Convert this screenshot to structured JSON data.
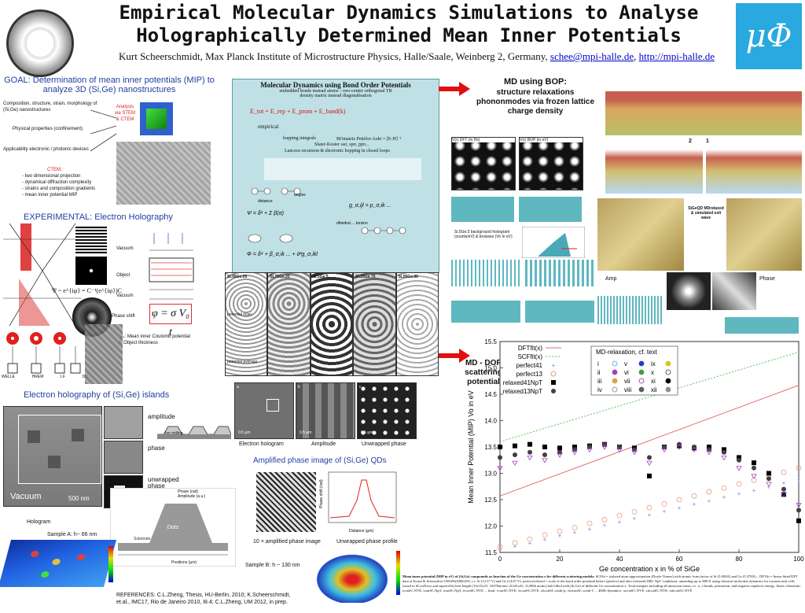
{
  "header": {
    "title_line1": "Empirical Molecular Dynamics Simulations to Analyse",
    "title_line2": "Holographically Determined Mean Inner Potentials",
    "authors": "Kurt Scheerschmidt, Max Planck Institute of Microstructure Physics, Halle/Saale, Weinberg 2, Germany,",
    "email": "schee@mpi-halle.de",
    "url": "http://mpi-halle.de",
    "logo_text": "μΦ"
  },
  "left": {
    "goal": "GOAL: Determination of mean inner potentials (MIP) to analyze 3D (Si,Ge) nanostructures",
    "goal_items": [
      "Composition, structure, strain, morphology of (Si,Ge) nanostructures",
      "Physical properties (confinement)",
      "Applicability electronic / photonic devices"
    ],
    "analysis": "Analysis via STEM & CTEM",
    "ctem_title": "CTEM:",
    "ctem_items": [
      "- two dimensional projection",
      "- dynamical diffraction complexity",
      "- strains and composition gradients",
      "- mean inner potential MIP"
    ],
    "experimental": "EXPERIMENTAL: Electron Holography",
    "vacuum": "Vacuum",
    "object": "Object",
    "vacuum2": "Vacuum",
    "phase_shift": "Phase shift",
    "formula_psi": "Ψ ~ e^{iφ} = C⁻¹(e^{iφ})C",
    "formula_phi": "φ = σ V₀ t",
    "v0_label": "V₀: Mean inner Coulomb potential",
    "t_label": "t: Object thickness",
    "boxes": [
      "WELLE",
      "HREM",
      "LF",
      "DC"
    ],
    "islands_title": "Electron holography of (Si,Ge) islands",
    "vacuum_label": "Vacuum",
    "scalebar": "500 nm",
    "amplitude": "amplitude",
    "ion_milling": "Ion milling",
    "phase": "phase",
    "unwrapped_phase": "unwrapped phase",
    "hologram": "Hologram",
    "sample_a": "Sample A: h~ 66 nm",
    "phase_legend": [
      "Phase (rad)",
      "Amplitude (a.u.)"
    ],
    "positions_label": "Positions (µm)",
    "substrate": "Substrate",
    "dots": "Dots",
    "references": "REFERENCES: C.L.Zheng, Thesis, HU-Berlin, 2010; K.Scheerschmidt, et.al., IMC17, Rio de Janeiro 2010, I8.4; C.L.Zheng, UM 2012, in prep."
  },
  "center": {
    "md_title": "Molecular Dynamics using Bond Order Potentials",
    "md_sub1": "embedded bonds instead atoms – two-center orthogonal TB",
    "md_sub2": "density matrix instead diagonalisation",
    "energy": "E_tot = E_rep + E_prom + E_band(k)",
    "empirical": "empirical",
    "hopping": "hopping integrals",
    "bonatrix": "BOmatrix Pettifor-Aoki = [E-H]⁻¹",
    "slater": "Slater-Koster ssσ, spσ, ppπ...",
    "lanczos": "Lanczos recursion & electronic hopping in closed loops",
    "distance": "distance",
    "angles": "angles",
    "dihedral": "dihedral ... torsion",
    "sim_labels": [
      "Si.95Ge.05",
      "Si.75Ge.25",
      "Si.5Ge.5",
      "Si.25Ge.75",
      "Si.05Ge.95"
    ],
    "potential_scan": "potential scan",
    "potential_average": "potential average",
    "holo_labels": [
      "a",
      "b",
      "c"
    ],
    "scale_05": "0.5 µm",
    "caption_holo": "Electron hologram",
    "caption_amp": "Amplitude",
    "caption_unwrap": "Unwrapped phase",
    "amp_phase_title": "Amplified phase image of (Si,Ge) QDs",
    "amp_caption": "10 × amplified phase image",
    "profile_caption": "Unwrapped phase profile",
    "profile_ylabel": "Phase shift (rad)",
    "profile_xlabel": "Distance (µm)",
    "sample_b": "Sample B: h ~ 130 nm"
  },
  "right": {
    "md_bop_title": "MD using BOP:",
    "md_bop_desc": "structure relaxations phononmodes via frozen lattice charge density",
    "v_dft": "V(r) DFT (in Hs)",
    "v_bop": "V(r) BOP (in eV)",
    "sige_label": "Si.5Ge.5 background histogram (counts/eV) & browses (Vo in eV)",
    "sigeqd": "SiGeQD MDrelaxed & simulated exit wave",
    "amp": "Amp",
    "phase": "Phase",
    "arrow_1": "1",
    "arrow_2": "2",
    "md_dop": "MD - DOP scattering potential",
    "caption_bold": "Mean inner potential (MIP in eV) of (Si,Ge) compounds as function of the Ge concentration x for different scattering models:",
    "caption_text": "SCFfit = isolated atom approximation (Doyle-Turner) with atomic form factor of Si (5.828Å) and Ge (5.378Å) – DFTfit = linear fitted DFT data of Kruse & Schowalter UM106(2006)105, i.e. Si (12.57 V) and Ge (14.67 V). perfect/relaxed = scale of the bond order potential before (perfect) and after (relaxed) MD; NpT conditions: annealing up to 800 K using classical molecular dynamics for vacuum unit cells (sized to SCxxNxxx and supercells) best length (15x15x15, 10470atoms/ 41x41x41, 312866 atoms) half filled with (Si,Ge) of different Ge concentration x. Total energies including all attraction terms, i.e. σ, π bonds, promotion, and negative repulsive energy. Static relaxation: iconSC.NVE, iconSC.NpT, iconSC.NpT, ivconSC.NVE ... final: vconSC.NVE, viconSC.NVE, viiconSC.weak-p, viiiconSC.weak-T ... 400K-dynamics: xiconSC.NVE, xiiconSC.NVE, xiiiconSC.NVE"
  },
  "chart_data": {
    "type": "scatter",
    "title": "",
    "xlabel": "Ge concentration x in % of  SiGe",
    "ylabel": "Mean Inner Potential (MIP) Vo in eV",
    "xlim": [
      0,
      100
    ],
    "ylim": [
      11.5,
      15.5
    ],
    "xticks": [
      0,
      20,
      40,
      60,
      80,
      100
    ],
    "yticks": [
      11.5,
      12,
      12.5,
      13,
      13.5,
      14,
      14.5,
      15,
      15.5
    ],
    "legend_left": [
      "DFTfit(x)",
      "SCFfit(x)",
      "perfect41",
      "perfect13",
      "relaxed41NpT",
      "relaxed13NpT"
    ],
    "legend_right_title": "MD-relaxation, cf. text",
    "legend_right": [
      "i",
      "ii",
      "iii",
      "iv",
      "v",
      "vi",
      "vii",
      "viii",
      "ix",
      "x",
      "xi",
      "xii"
    ],
    "series": [
      {
        "name": "DFTfit(x)",
        "x": [
          0,
          100
        ],
        "y": [
          12.57,
          14.67
        ],
        "color": "#e07070"
      },
      {
        "name": "SCFfit(x)",
        "x": [
          0,
          100
        ],
        "y": [
          13.6,
          15.3
        ],
        "color": "#60c060"
      },
      {
        "name": "perfect41",
        "x": [
          0,
          5,
          10,
          15,
          20,
          25,
          30,
          35,
          40,
          45,
          50,
          55,
          60,
          65,
          70,
          75,
          80,
          85,
          90,
          95,
          100
        ],
        "y": [
          11.55,
          11.62,
          11.68,
          11.75,
          11.82,
          11.88,
          11.95,
          12.02,
          12.08,
          12.15,
          12.22,
          12.28,
          12.35,
          12.42,
          12.48,
          12.55,
          12.62,
          12.68,
          12.75,
          12.82,
          12.88
        ],
        "color": "#8080e0"
      },
      {
        "name": "perfect13",
        "x": [
          0,
          5,
          10,
          15,
          20,
          25,
          30,
          35,
          40,
          45,
          50,
          55,
          60,
          65,
          70,
          75,
          80,
          85,
          90,
          95,
          100
        ],
        "y": [
          11.6,
          11.68,
          11.75,
          11.83,
          11.9,
          11.97,
          12.05,
          12.12,
          12.2,
          12.27,
          12.35,
          12.42,
          12.5,
          12.57,
          12.65,
          12.72,
          12.8,
          12.87,
          12.95,
          13.02,
          13.1
        ],
        "color": "#e0a080"
      },
      {
        "name": "relaxed41NpT",
        "x": [
          0,
          5,
          10,
          15,
          20,
          25,
          30,
          35,
          40,
          45,
          50,
          55,
          60,
          65,
          70,
          75,
          80,
          85,
          90,
          95,
          100
        ],
        "y": [
          13.5,
          13.52,
          13.55,
          13.5,
          13.48,
          13.5,
          13.52,
          13.55,
          13.5,
          13.48,
          12.95,
          13.5,
          13.52,
          13.48,
          13.5,
          13.45,
          13.3,
          13.2,
          13.0,
          12.6,
          12.1
        ],
        "color": "#000000"
      },
      {
        "name": "relaxed13NpT",
        "x": [
          0,
          5,
          10,
          15,
          20,
          25,
          30,
          35,
          40,
          45,
          50,
          55,
          60,
          65,
          70,
          75,
          80,
          85,
          90,
          95,
          100
        ],
        "y": [
          13.3,
          13.35,
          13.4,
          13.35,
          13.4,
          13.45,
          13.5,
          13.55,
          13.5,
          13.45,
          13.3,
          13.5,
          13.55,
          13.5,
          13.45,
          13.4,
          13.25,
          13.1,
          12.9,
          12.7,
          12.3
        ],
        "color": "#404040"
      },
      {
        "name": "MD-relaxation",
        "x": [
          0,
          5,
          10,
          15,
          20,
          25,
          30,
          35,
          40,
          45,
          50,
          55,
          60,
          65,
          70,
          75,
          80,
          85,
          90,
          95,
          100
        ],
        "y": [
          13.1,
          13.2,
          13.3,
          13.25,
          13.35,
          13.4,
          13.45,
          13.5,
          13.45,
          13.4,
          13.2,
          13.45,
          13.5,
          13.45,
          13.4,
          13.3,
          13.1,
          12.95,
          12.8,
          12.6,
          12.4
        ],
        "color": "#a040c0"
      }
    ]
  }
}
